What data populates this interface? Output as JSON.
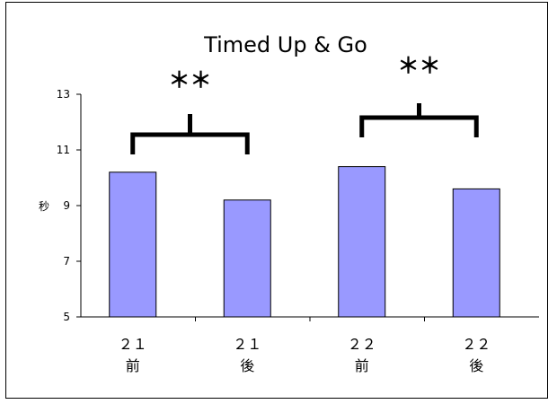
{
  "chart_data": {
    "type": "bar",
    "title": "Timed Up & Go",
    "ylabel": "秒",
    "xlabel": "",
    "ylim": [
      5,
      13
    ],
    "yticks": [
      5,
      7,
      9,
      11,
      13
    ],
    "categories": [
      {
        "line1": "２１",
        "line2": "前"
      },
      {
        "line1": "２１",
        "line2": "後"
      },
      {
        "line1": "２２",
        "line2": "前"
      },
      {
        "line1": "２２",
        "line2": "後"
      }
    ],
    "values": [
      10.2,
      9.2,
      10.4,
      9.6
    ],
    "bar_color": "#9999ff",
    "bar_stroke": "#000000",
    "grid": false,
    "legend": "none",
    "significance": [
      {
        "from": 0,
        "to": 1,
        "label": "＊＊"
      },
      {
        "from": 2,
        "to": 3,
        "label": "＊＊"
      }
    ]
  }
}
